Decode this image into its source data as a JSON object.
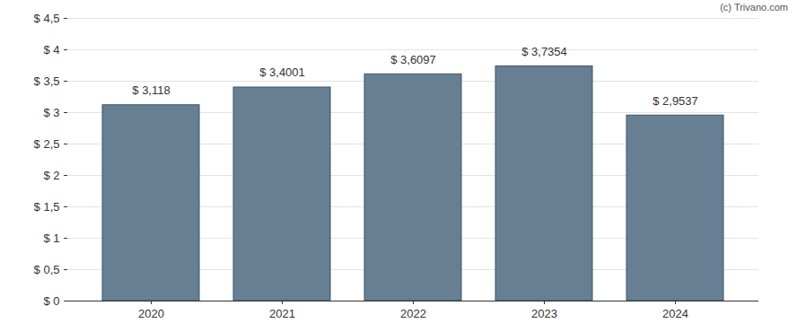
{
  "chart_data": {
    "type": "bar",
    "annotations": [
      "(c) Trivano.com"
    ],
    "categories": [
      "2020",
      "2021",
      "2022",
      "2023",
      "2024"
    ],
    "values": [
      3.118,
      3.4001,
      3.6097,
      3.7354,
      2.9537
    ],
    "value_labels": [
      "$ 3,118",
      "$ 3,4001",
      "$ 3,6097",
      "$ 3,7354",
      "$ 2,9537"
    ],
    "data_labels": true,
    "color": "#667f93",
    "ylim": [
      0,
      4.5
    ],
    "yticks": [
      {
        "value": 0,
        "label": "$ 0"
      },
      {
        "value": 0.5,
        "label": "$ 0,5"
      },
      {
        "value": 1,
        "label": "$ 1"
      },
      {
        "value": 1.5,
        "label": "$ 1,5"
      },
      {
        "value": 2,
        "label": "$ 2"
      },
      {
        "value": 2.5,
        "label": "$ 2,5"
      },
      {
        "value": 3,
        "label": "$ 3"
      },
      {
        "value": 3.5,
        "label": "$ 3,5"
      },
      {
        "value": 4,
        "label": "$ 4"
      },
      {
        "value": 4.5,
        "label": "$ 4,5"
      }
    ],
    "grid": true
  }
}
